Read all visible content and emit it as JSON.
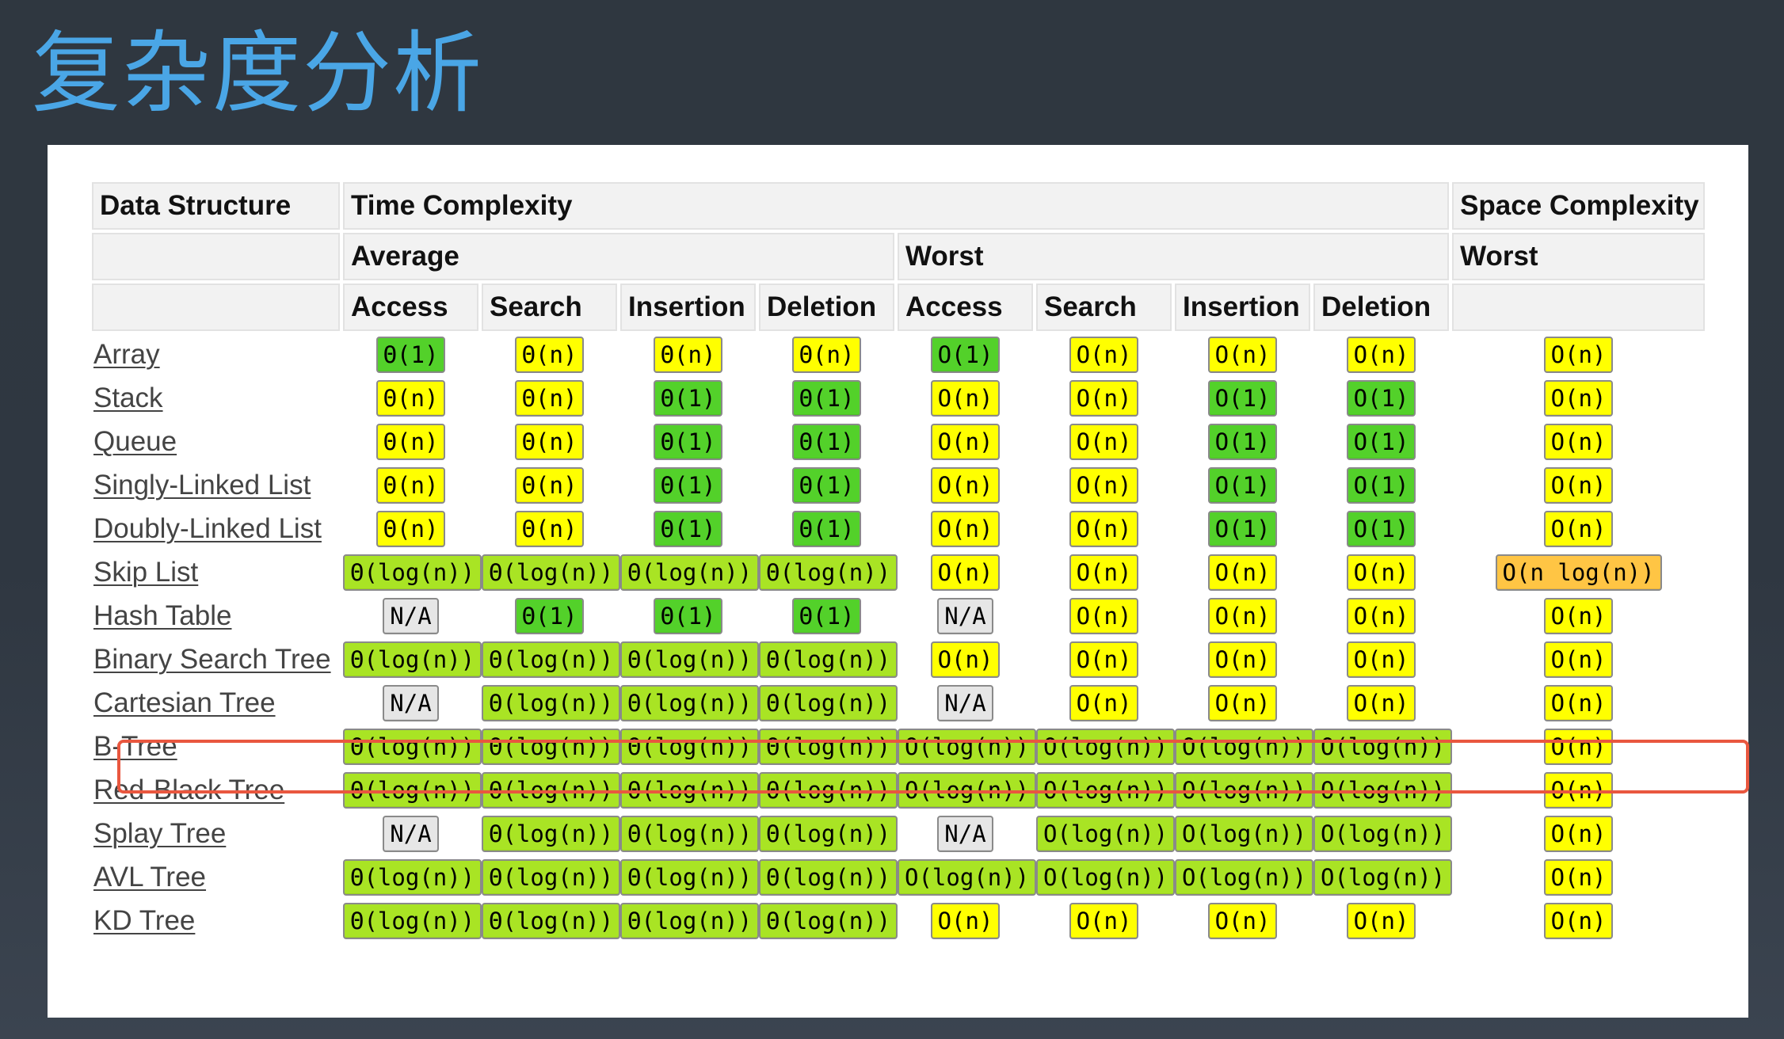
{
  "slide": {
    "title": "复杂度分析"
  },
  "colors": {
    "title": "#4aa6e6",
    "good": "#53d12a",
    "fair": "#a9e424",
    "ok": "#ffff00",
    "bad": "#ffc544",
    "na": "#e6e6e6",
    "highlight": "#e9573f"
  },
  "table": {
    "headers": {
      "data_structure": "Data Structure",
      "time_complexity": "Time Complexity",
      "space_complexity": "Space Complexity",
      "average": "Average",
      "worst": "Worst",
      "space_worst": "Worst",
      "ops": [
        "Access",
        "Search",
        "Insertion",
        "Deletion",
        "Access",
        "Search",
        "Insertion",
        "Deletion"
      ]
    },
    "highlighted_row": "Hash Table",
    "rows": [
      {
        "name": "Array",
        "cells": [
          [
            "Θ(1)",
            "good"
          ],
          [
            "Θ(n)",
            "ok"
          ],
          [
            "Θ(n)",
            "ok"
          ],
          [
            "Θ(n)",
            "ok"
          ],
          [
            "O(1)",
            "good"
          ],
          [
            "O(n)",
            "ok"
          ],
          [
            "O(n)",
            "ok"
          ],
          [
            "O(n)",
            "ok"
          ],
          [
            "O(n)",
            "ok"
          ]
        ]
      },
      {
        "name": "Stack",
        "cells": [
          [
            "Θ(n)",
            "ok"
          ],
          [
            "Θ(n)",
            "ok"
          ],
          [
            "Θ(1)",
            "good"
          ],
          [
            "Θ(1)",
            "good"
          ],
          [
            "O(n)",
            "ok"
          ],
          [
            "O(n)",
            "ok"
          ],
          [
            "O(1)",
            "good"
          ],
          [
            "O(1)",
            "good"
          ],
          [
            "O(n)",
            "ok"
          ]
        ]
      },
      {
        "name": "Queue",
        "cells": [
          [
            "Θ(n)",
            "ok"
          ],
          [
            "Θ(n)",
            "ok"
          ],
          [
            "Θ(1)",
            "good"
          ],
          [
            "Θ(1)",
            "good"
          ],
          [
            "O(n)",
            "ok"
          ],
          [
            "O(n)",
            "ok"
          ],
          [
            "O(1)",
            "good"
          ],
          [
            "O(1)",
            "good"
          ],
          [
            "O(n)",
            "ok"
          ]
        ]
      },
      {
        "name": "Singly-Linked List",
        "cells": [
          [
            "Θ(n)",
            "ok"
          ],
          [
            "Θ(n)",
            "ok"
          ],
          [
            "Θ(1)",
            "good"
          ],
          [
            "Θ(1)",
            "good"
          ],
          [
            "O(n)",
            "ok"
          ],
          [
            "O(n)",
            "ok"
          ],
          [
            "O(1)",
            "good"
          ],
          [
            "O(1)",
            "good"
          ],
          [
            "O(n)",
            "ok"
          ]
        ]
      },
      {
        "name": "Doubly-Linked List",
        "cells": [
          [
            "Θ(n)",
            "ok"
          ],
          [
            "Θ(n)",
            "ok"
          ],
          [
            "Θ(1)",
            "good"
          ],
          [
            "Θ(1)",
            "good"
          ],
          [
            "O(n)",
            "ok"
          ],
          [
            "O(n)",
            "ok"
          ],
          [
            "O(1)",
            "good"
          ],
          [
            "O(1)",
            "good"
          ],
          [
            "O(n)",
            "ok"
          ]
        ]
      },
      {
        "name": "Skip List",
        "cells": [
          [
            "Θ(log(n))",
            "fair"
          ],
          [
            "Θ(log(n))",
            "fair"
          ],
          [
            "Θ(log(n))",
            "fair"
          ],
          [
            "Θ(log(n))",
            "fair"
          ],
          [
            "O(n)",
            "ok"
          ],
          [
            "O(n)",
            "ok"
          ],
          [
            "O(n)",
            "ok"
          ],
          [
            "O(n)",
            "ok"
          ],
          [
            "O(n log(n))",
            "bad"
          ]
        ]
      },
      {
        "name": "Hash Table",
        "cells": [
          [
            "N/A",
            "na"
          ],
          [
            "Θ(1)",
            "good"
          ],
          [
            "Θ(1)",
            "good"
          ],
          [
            "Θ(1)",
            "good"
          ],
          [
            "N/A",
            "na"
          ],
          [
            "O(n)",
            "ok"
          ],
          [
            "O(n)",
            "ok"
          ],
          [
            "O(n)",
            "ok"
          ],
          [
            "O(n)",
            "ok"
          ]
        ]
      },
      {
        "name": "Binary Search Tree",
        "cells": [
          [
            "Θ(log(n))",
            "fair"
          ],
          [
            "Θ(log(n))",
            "fair"
          ],
          [
            "Θ(log(n))",
            "fair"
          ],
          [
            "Θ(log(n))",
            "fair"
          ],
          [
            "O(n)",
            "ok"
          ],
          [
            "O(n)",
            "ok"
          ],
          [
            "O(n)",
            "ok"
          ],
          [
            "O(n)",
            "ok"
          ],
          [
            "O(n)",
            "ok"
          ]
        ]
      },
      {
        "name": "Cartesian Tree",
        "cells": [
          [
            "N/A",
            "na"
          ],
          [
            "Θ(log(n))",
            "fair"
          ],
          [
            "Θ(log(n))",
            "fair"
          ],
          [
            "Θ(log(n))",
            "fair"
          ],
          [
            "N/A",
            "na"
          ],
          [
            "O(n)",
            "ok"
          ],
          [
            "O(n)",
            "ok"
          ],
          [
            "O(n)",
            "ok"
          ],
          [
            "O(n)",
            "ok"
          ]
        ]
      },
      {
        "name": "B-Tree",
        "cells": [
          [
            "Θ(log(n))",
            "fair"
          ],
          [
            "Θ(log(n))",
            "fair"
          ],
          [
            "Θ(log(n))",
            "fair"
          ],
          [
            "Θ(log(n))",
            "fair"
          ],
          [
            "O(log(n))",
            "fair"
          ],
          [
            "O(log(n))",
            "fair"
          ],
          [
            "O(log(n))",
            "fair"
          ],
          [
            "O(log(n))",
            "fair"
          ],
          [
            "O(n)",
            "ok"
          ]
        ]
      },
      {
        "name": "Red-Black Tree",
        "cells": [
          [
            "Θ(log(n))",
            "fair"
          ],
          [
            "Θ(log(n))",
            "fair"
          ],
          [
            "Θ(log(n))",
            "fair"
          ],
          [
            "Θ(log(n))",
            "fair"
          ],
          [
            "O(log(n))",
            "fair"
          ],
          [
            "O(log(n))",
            "fair"
          ],
          [
            "O(log(n))",
            "fair"
          ],
          [
            "O(log(n))",
            "fair"
          ],
          [
            "O(n)",
            "ok"
          ]
        ]
      },
      {
        "name": "Splay Tree",
        "cells": [
          [
            "N/A",
            "na"
          ],
          [
            "Θ(log(n))",
            "fair"
          ],
          [
            "Θ(log(n))",
            "fair"
          ],
          [
            "Θ(log(n))",
            "fair"
          ],
          [
            "N/A",
            "na"
          ],
          [
            "O(log(n))",
            "fair"
          ],
          [
            "O(log(n))",
            "fair"
          ],
          [
            "O(log(n))",
            "fair"
          ],
          [
            "O(n)",
            "ok"
          ]
        ]
      },
      {
        "name": "AVL Tree",
        "cells": [
          [
            "Θ(log(n))",
            "fair"
          ],
          [
            "Θ(log(n))",
            "fair"
          ],
          [
            "Θ(log(n))",
            "fair"
          ],
          [
            "Θ(log(n))",
            "fair"
          ],
          [
            "O(log(n))",
            "fair"
          ],
          [
            "O(log(n))",
            "fair"
          ],
          [
            "O(log(n))",
            "fair"
          ],
          [
            "O(log(n))",
            "fair"
          ],
          [
            "O(n)",
            "ok"
          ]
        ]
      },
      {
        "name": "KD Tree",
        "cells": [
          [
            "Θ(log(n))",
            "fair"
          ],
          [
            "Θ(log(n))",
            "fair"
          ],
          [
            "Θ(log(n))",
            "fair"
          ],
          [
            "Θ(log(n))",
            "fair"
          ],
          [
            "O(n)",
            "ok"
          ],
          [
            "O(n)",
            "ok"
          ],
          [
            "O(n)",
            "ok"
          ],
          [
            "O(n)",
            "ok"
          ],
          [
            "O(n)",
            "ok"
          ]
        ]
      }
    ]
  }
}
